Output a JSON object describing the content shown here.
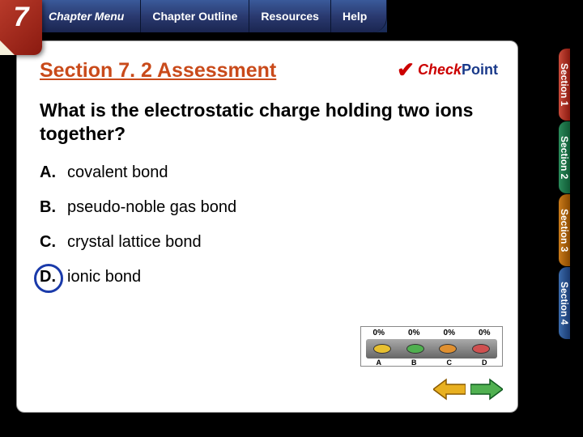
{
  "chapter": {
    "number": "7",
    "menu_label": "Chapter Menu"
  },
  "topnav": {
    "outline": "Chapter Outline",
    "resources": "Resources",
    "help": "Help"
  },
  "side_tabs": [
    {
      "label": "Section 1",
      "class": "s1"
    },
    {
      "label": "Section 2",
      "class": "s2"
    },
    {
      "label": "Section 3",
      "class": "s3"
    },
    {
      "label": "Section 4",
      "class": "s4"
    }
  ],
  "checkpoint": {
    "check": "Check",
    "point": "Point"
  },
  "content": {
    "heading": "Section 7. 2 Assessment",
    "question": "What is the electrostatic charge holding two ions together?",
    "answers": [
      {
        "letter": "A.",
        "text": "covalent bond",
        "correct": false
      },
      {
        "letter": "B.",
        "text": "pseudo-noble gas bond",
        "correct": false
      },
      {
        "letter": "C.",
        "text": "crystal lattice bond",
        "correct": false
      },
      {
        "letter": "D.",
        "text": "ionic bond",
        "correct": true
      }
    ]
  },
  "response_panel": {
    "percents": [
      "0%",
      "0%",
      "0%",
      "0%"
    ],
    "options": [
      "A",
      "B",
      "C",
      "D"
    ],
    "button_colors": [
      "#e8c030",
      "#50b050",
      "#e09030",
      "#d05050"
    ]
  },
  "colors": {
    "heading": "#c94a1a",
    "circle": "#1a3aaa",
    "nav_bg_top": "#3a5a9a",
    "nav_bg_bottom": "#1a2550",
    "arrow_left": "#e8b020",
    "arrow_right": "#50b050"
  }
}
